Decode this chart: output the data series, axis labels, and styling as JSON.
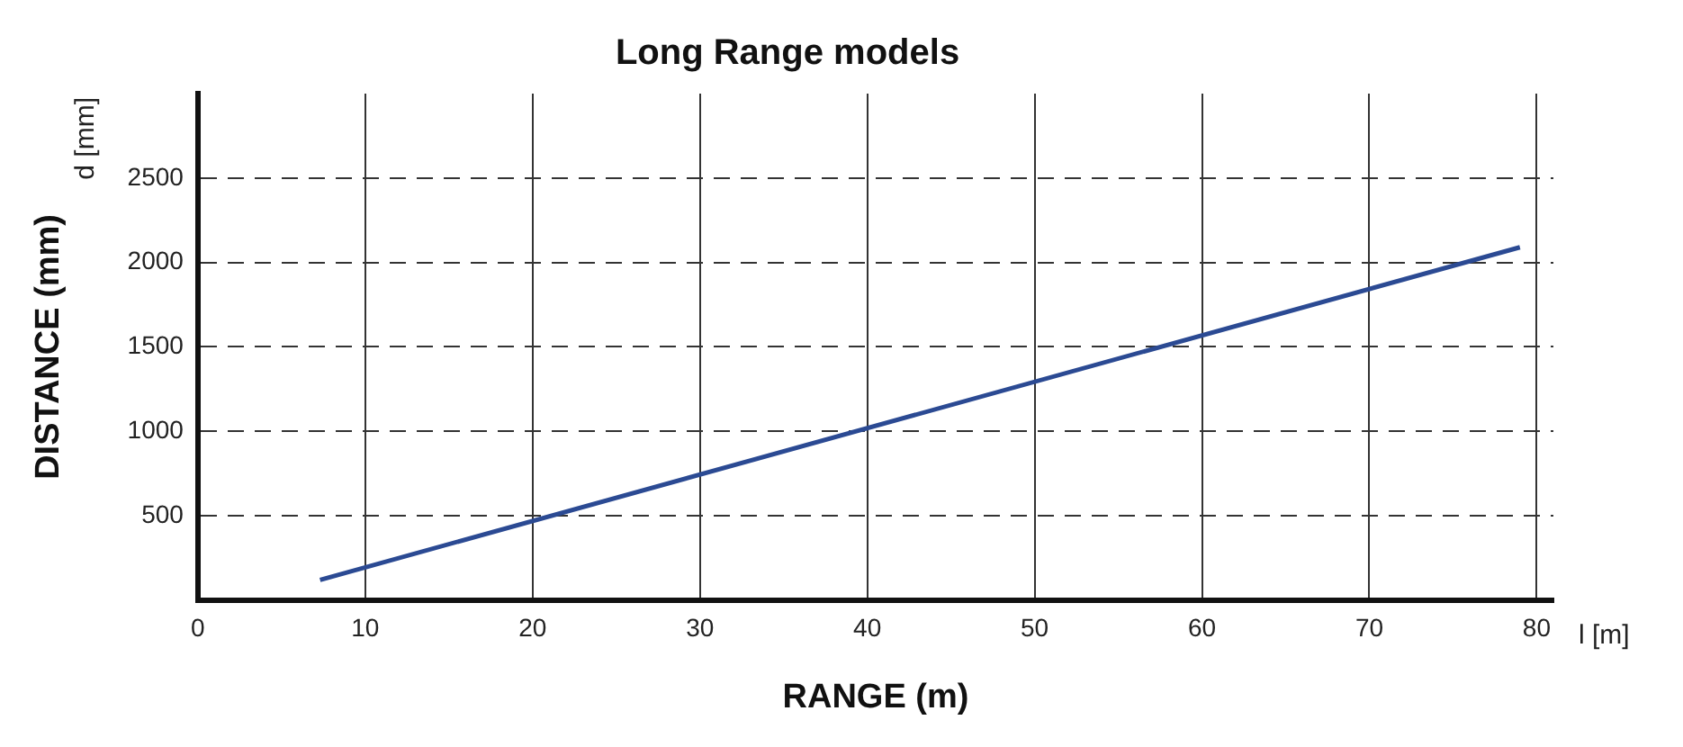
{
  "chart_data": {
    "type": "line",
    "title": "Long Range models",
    "xlabel": "RANGE (m)",
    "ylabel": "DISTANCE (mm)",
    "annotations": [
      "d [mm]",
      "l [m]"
    ],
    "x": [
      7.3,
      79
    ],
    "series": [
      {
        "color": "#2b4a93",
        "values": [
          120,
          2090
        ]
      }
    ],
    "xlim": [
      0,
      81
    ],
    "xticks": [
      0,
      10,
      20,
      30,
      40,
      50,
      60,
      70,
      80
    ],
    "ylim": [
      0,
      3000
    ],
    "yticks": [
      500,
      1000,
      1500,
      2000,
      2500
    ],
    "grid": true,
    "legend": false,
    "marker": "none",
    "line_style": "solid"
  }
}
